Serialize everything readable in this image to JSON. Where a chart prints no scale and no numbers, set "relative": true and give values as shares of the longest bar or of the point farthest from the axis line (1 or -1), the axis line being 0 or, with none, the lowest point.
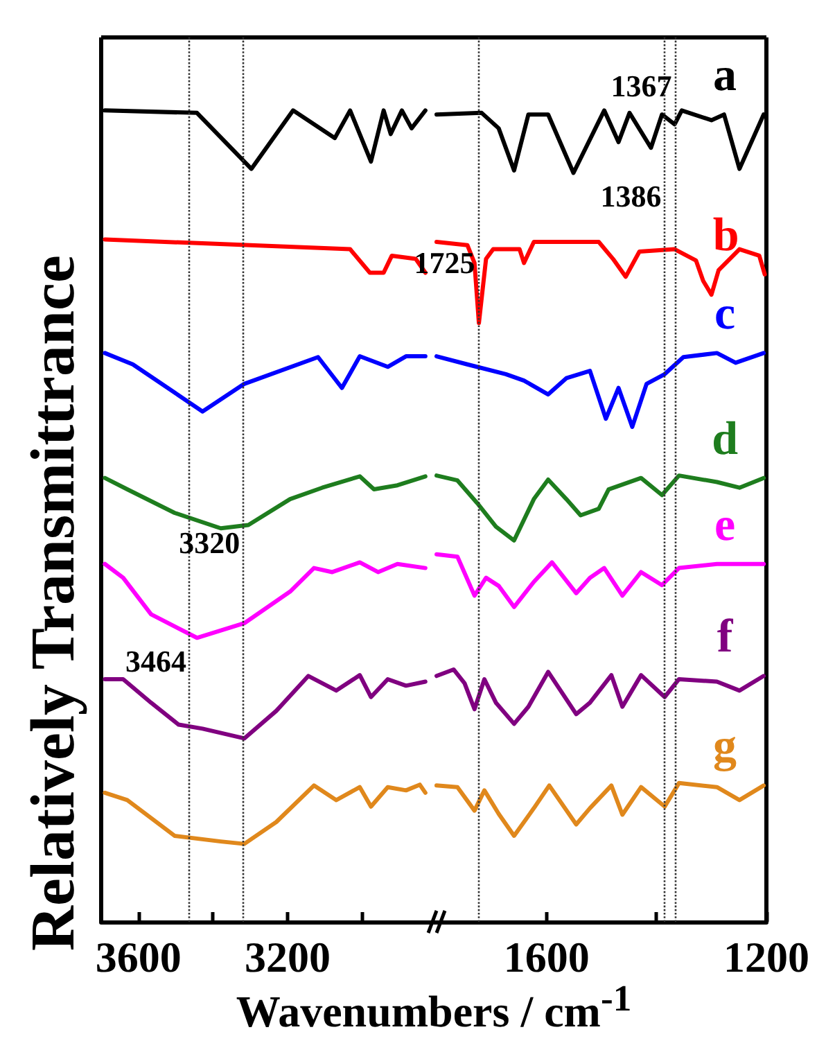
{
  "chart_data": [
    {
      "type": "line",
      "relative": true,
      "ylabel": "Relatively Transmittrance",
      "xlabel": "Wavenumbers / cm$^{-1}$",
      "xlim": [
        3700,
        2800
      ],
      "xticks": [
        3600,
        {
          "value": 3400,
          "label": null
        },
        3200,
        {
          "value": 3000,
          "label": null
        }
      ],
      "tick_labels": "x",
      "marker": "none",
      "line_style": "solid",
      "ref_lines": [
        {
          "axis": "x",
          "value": 3464,
          "line_style": "dotted"
        },
        {
          "axis": "x",
          "value": 3320,
          "line_style": "dotted"
        }
      ],
      "annotations": [
        {
          "text": "3464",
          "x": 3464,
          "y": 0.321
        },
        {
          "text": "3320",
          "x": 3320,
          "y": 0.467
        }
      ],
      "series": [
        {
          "color": "#000000",
          "x": [
            3690,
            3443,
            3297,
            3185,
            3073,
            3032,
            2976,
            2942,
            2923,
            2893,
            2867,
            2830
          ],
          "values": [
            1.0,
            0.997,
            0.928,
            1.0,
            0.966,
            1.0,
            0.937,
            1.0,
            0.971,
            1.0,
            0.978,
            1.0
          ]
        },
        {
          "color": "#ff0000",
          "x": [
            3690,
            3417,
            3032,
            2979,
            2942,
            2920,
            2856,
            2830
          ],
          "values": [
            0.841,
            0.836,
            0.829,
            0.8,
            0.8,
            0.821,
            0.817,
            0.8
          ]
        },
        {
          "color": "#0000ff",
          "x": [
            3690,
            3615,
            3428,
            3316,
            3118,
            3054,
            3006,
            2931,
            2882,
            2830
          ],
          "values": [
            0.701,
            0.687,
            0.629,
            0.663,
            0.696,
            0.658,
            0.697,
            0.684,
            0.697,
            0.697
          ]
        },
        {
          "color": "#1e7d1e",
          "x": [
            3690,
            3630,
            3503,
            3379,
            3305,
            3193,
            3107,
            3006,
            2968,
            2905,
            2830
          ],
          "values": [
            0.547,
            0.533,
            0.504,
            0.485,
            0.489,
            0.521,
            0.535,
            0.549,
            0.533,
            0.538,
            0.549
          ]
        },
        {
          "color": "#ff00ff",
          "x": [
            3690,
            3641,
            3566,
            3443,
            3316,
            3193,
            3129,
            3080,
            3006,
            2957,
            2905,
            2830
          ],
          "values": [
            0.441,
            0.424,
            0.379,
            0.35,
            0.368,
            0.407,
            0.436,
            0.431,
            0.443,
            0.431,
            0.441,
            0.436
          ]
        },
        {
          "color": "#800080",
          "x": [
            3690,
            3641,
            3566,
            3492,
            3428,
            3316,
            3230,
            3144,
            3069,
            3006,
            2976,
            2931,
            2882,
            2830
          ],
          "values": [
            0.299,
            0.299,
            0.27,
            0.243,
            0.238,
            0.226,
            0.26,
            0.303,
            0.285,
            0.304,
            0.277,
            0.299,
            0.291,
            0.296
          ]
        },
        {
          "color": "#e0881c",
          "x": [
            3690,
            3630,
            3503,
            3379,
            3316,
            3230,
            3129,
            3069,
            3006,
            2976,
            2931,
            2882,
            2845,
            2830
          ],
          "values": [
            0.159,
            0.15,
            0.106,
            0.099,
            0.096,
            0.123,
            0.168,
            0.15,
            0.166,
            0.142,
            0.166,
            0.162,
            0.169,
            0.159
          ]
        }
      ]
    },
    {
      "type": "line",
      "relative": true,
      "xlim": [
        1800,
        1200
      ],
      "xticks": [
        1600,
        {
          "value": 1400,
          "label": null
        },
        1200
      ],
      "tick_labels": "x",
      "marker": "none",
      "line_style": "solid",
      "ref_lines": [
        {
          "axis": "x",
          "value": 1725,
          "line_style": "dotted"
        },
        {
          "axis": "x",
          "value": 1386,
          "line_style": "dotted"
        },
        {
          "axis": "x",
          "value": 1367,
          "line_style": "dotted"
        }
      ],
      "annotations": [
        {
          "text": "1725",
          "x": 1725,
          "y": 0.812
        },
        {
          "text": "1386",
          "x": 1386,
          "y": 0.894
        },
        {
          "text": "1367",
          "x": 1367,
          "y": 1.03
        }
      ],
      "series": [
        {
          "name": "a",
          "color": "#000000",
          "x": [
            1800,
            1718,
            1687,
            1659,
            1633,
            1597,
            1551,
            1495,
            1469,
            1449,
            1410,
            1390,
            1367,
            1354,
            1300,
            1277,
            1249,
            1205
          ],
          "values": [
            0.995,
            0.997,
            0.978,
            0.926,
            0.995,
            0.995,
            0.923,
            1.0,
            0.961,
            0.997,
            0.954,
            0.995,
            0.983,
            1.0,
            0.988,
            0.995,
            0.928,
            0.995
          ]
        },
        {
          "name": "b",
          "color": "#ff0000",
          "x": [
            1800,
            1744,
            1731,
            1723,
            1710,
            1697,
            1649,
            1641,
            1623,
            1505,
            1479,
            1456,
            1431,
            1367,
            1328,
            1315,
            1300,
            1287,
            1249,
            1213,
            1203
          ],
          "values": [
            0.838,
            0.834,
            0.812,
            0.738,
            0.817,
            0.829,
            0.829,
            0.812,
            0.838,
            0.838,
            0.817,
            0.795,
            0.826,
            0.829,
            0.815,
            0.79,
            0.773,
            0.803,
            0.829,
            0.821,
            0.798
          ]
        },
        {
          "name": "c",
          "color": "#0000ff",
          "x": [
            1800,
            1744,
            1674,
            1641,
            1597,
            1564,
            1521,
            1492,
            1469,
            1444,
            1418,
            1385,
            1351,
            1290,
            1256,
            1205
          ],
          "values": [
            0.697,
            0.687,
            0.675,
            0.667,
            0.65,
            0.67,
            0.679,
            0.62,
            0.658,
            0.61,
            0.663,
            0.675,
            0.696,
            0.701,
            0.689,
            0.701
          ]
        },
        {
          "name": "d",
          "color": "#1e7d1e",
          "x": [
            1800,
            1762,
            1726,
            1692,
            1659,
            1623,
            1597,
            1564,
            1538,
            1505,
            1487,
            1428,
            1390,
            1359,
            1290,
            1249,
            1205
          ],
          "values": [
            0.55,
            0.544,
            0.516,
            0.487,
            0.47,
            0.521,
            0.545,
            0.521,
            0.501,
            0.509,
            0.533,
            0.547,
            0.526,
            0.55,
            0.542,
            0.535,
            0.547
          ]
        },
        {
          "name": "e",
          "color": "#ff00ff",
          "x": [
            1800,
            1762,
            1731,
            1710,
            1687,
            1659,
            1623,
            1590,
            1546,
            1521,
            1495,
            1462,
            1428,
            1390,
            1359,
            1290,
            1205
          ],
          "values": [
            0.453,
            0.45,
            0.402,
            0.424,
            0.414,
            0.388,
            0.419,
            0.443,
            0.405,
            0.424,
            0.436,
            0.402,
            0.431,
            0.415,
            0.436,
            0.441,
            0.441
          ]
        },
        {
          "name": "f",
          "color": "#800080",
          "x": [
            1800,
            1769,
            1749,
            1731,
            1713,
            1692,
            1659,
            1633,
            1597,
            1546,
            1521,
            1482,
            1462,
            1428,
            1385,
            1359,
            1290,
            1249,
            1205
          ],
          "values": [
            0.303,
            0.311,
            0.294,
            0.262,
            0.299,
            0.27,
            0.244,
            0.265,
            0.308,
            0.256,
            0.27,
            0.304,
            0.265,
            0.304,
            0.277,
            0.299,
            0.296,
            0.285,
            0.303
          ]
        },
        {
          "name": "g",
          "color": "#e0881c",
          "x": [
            1800,
            1762,
            1731,
            1713,
            1687,
            1659,
            1623,
            1595,
            1546,
            1521,
            1482,
            1462,
            1428,
            1385,
            1359,
            1290,
            1249,
            1205
          ],
          "values": [
            0.168,
            0.166,
            0.137,
            0.162,
            0.133,
            0.106,
            0.14,
            0.168,
            0.12,
            0.14,
            0.168,
            0.132,
            0.166,
            0.142,
            0.171,
            0.166,
            0.15,
            0.168
          ]
        }
      ]
    }
  ]
}
